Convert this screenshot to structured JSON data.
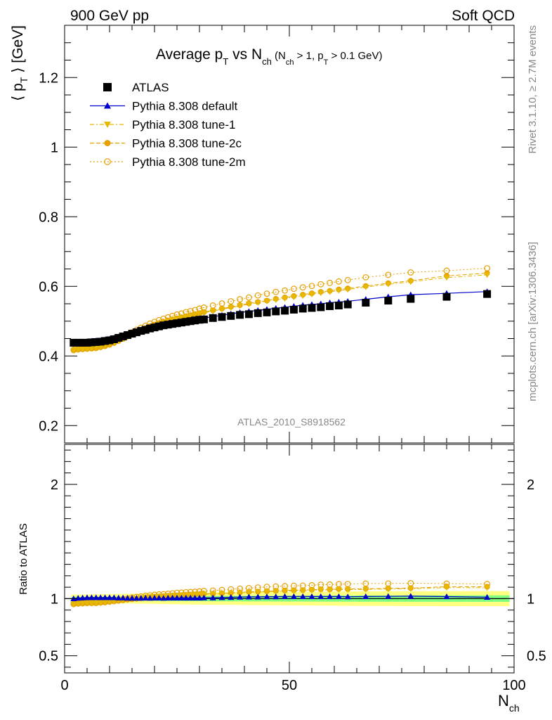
{
  "header": {
    "left": "900 GeV pp",
    "right": "Soft QCD"
  },
  "side_text": {
    "top": "Rivet 3.1.10, ≥ 2.7M events",
    "bottom": "mcplots.cern.ch [arXiv:1306.3436]"
  },
  "analysis_label": "ATLAS_2010_S8918562",
  "chart_data": [
    {
      "panel": "main",
      "type": "scatter",
      "title": "Average pT vs Nch (Nch > 1, pT > 0.1 GeV)",
      "ylabel": "⟨ pT ⟩ [GeV]",
      "xlabel": "",
      "xlim": [
        0,
        100
      ],
      "ylim": [
        0.15,
        1.35
      ],
      "y_ticks": [
        "0.2",
        "0.4",
        "0.6",
        "0.8",
        "1",
        "1.2"
      ],
      "legend_position": "top-left",
      "x": [
        2,
        3,
        4,
        5,
        6,
        7,
        8,
        9,
        10,
        11,
        12,
        13,
        14,
        15,
        16,
        17,
        18,
        19,
        20,
        21,
        22,
        23,
        24,
        25,
        26,
        27,
        28,
        29,
        30,
        31,
        33,
        35,
        37,
        39,
        41,
        43,
        45,
        47,
        49,
        51,
        53,
        55,
        57,
        59,
        61,
        63,
        67,
        72,
        77,
        85,
        94
      ],
      "series": [
        {
          "name": "ATLAS",
          "color": "#000000",
          "marker": "square",
          "line": "none",
          "values": [
            0.438,
            0.438,
            0.438,
            0.438,
            0.439,
            0.44,
            0.441,
            0.443,
            0.445,
            0.448,
            0.452,
            0.456,
            0.46,
            0.464,
            0.468,
            0.472,
            0.475,
            0.479,
            0.482,
            0.485,
            0.488,
            0.49,
            0.492,
            0.494,
            0.496,
            0.498,
            0.5,
            0.502,
            0.504,
            0.505,
            0.509,
            0.512,
            0.515,
            0.518,
            0.52,
            0.523,
            0.525,
            0.528,
            0.53,
            0.533,
            0.536,
            0.538,
            0.54,
            0.543,
            0.545,
            0.548,
            0.553,
            0.559,
            0.564,
            0.57,
            0.578
          ]
        },
        {
          "name": "Pythia 8.308 default",
          "color": "#0000cc",
          "marker": "triangle-up",
          "line": "solid",
          "values": [
            0.438,
            0.44,
            0.441,
            0.442,
            0.443,
            0.444,
            0.445,
            0.447,
            0.449,
            0.452,
            0.455,
            0.459,
            0.462,
            0.466,
            0.47,
            0.474,
            0.478,
            0.481,
            0.485,
            0.488,
            0.49,
            0.493,
            0.495,
            0.497,
            0.499,
            0.501,
            0.503,
            0.505,
            0.507,
            0.509,
            0.513,
            0.517,
            0.521,
            0.525,
            0.528,
            0.531,
            0.534,
            0.537,
            0.54,
            0.543,
            0.546,
            0.548,
            0.55,
            0.553,
            0.555,
            0.557,
            0.563,
            0.57,
            0.576,
            0.58,
            0.585
          ]
        },
        {
          "name": "Pythia 8.308 tune-1",
          "color": "#e6b800",
          "marker": "triangle-down",
          "line": "dash-dot",
          "values": [
            0.416,
            0.418,
            0.419,
            0.42,
            0.421,
            0.422,
            0.424,
            0.428,
            0.432,
            0.437,
            0.443,
            0.449,
            0.455,
            0.461,
            0.467,
            0.473,
            0.478,
            0.483,
            0.488,
            0.492,
            0.496,
            0.5,
            0.503,
            0.506,
            0.509,
            0.512,
            0.515,
            0.518,
            0.521,
            0.524,
            0.529,
            0.534,
            0.539,
            0.544,
            0.549,
            0.553,
            0.557,
            0.561,
            0.565,
            0.569,
            0.573,
            0.577,
            0.581,
            0.584,
            0.588,
            0.591,
            0.598,
            0.606,
            0.613,
            0.625,
            0.633
          ]
        },
        {
          "name": "Pythia 8.308 tune-2c",
          "color": "#e6a000",
          "marker": "circle",
          "line": "dashed",
          "values": [
            0.416,
            0.418,
            0.419,
            0.42,
            0.421,
            0.422,
            0.425,
            0.428,
            0.432,
            0.437,
            0.443,
            0.449,
            0.456,
            0.462,
            0.468,
            0.474,
            0.48,
            0.485,
            0.49,
            0.494,
            0.498,
            0.502,
            0.505,
            0.508,
            0.511,
            0.514,
            0.517,
            0.52,
            0.523,
            0.526,
            0.531,
            0.536,
            0.541,
            0.546,
            0.551,
            0.555,
            0.559,
            0.564,
            0.568,
            0.572,
            0.576,
            0.58,
            0.584,
            0.587,
            0.591,
            0.594,
            0.601,
            0.609,
            0.616,
            0.63,
            0.638
          ]
        },
        {
          "name": "Pythia 8.308 tune-2m",
          "color": "#e69f00",
          "marker": "open-circle",
          "line": "dotted",
          "values": [
            0.418,
            0.42,
            0.421,
            0.422,
            0.424,
            0.426,
            0.429,
            0.433,
            0.437,
            0.442,
            0.448,
            0.454,
            0.461,
            0.468,
            0.475,
            0.481,
            0.487,
            0.493,
            0.498,
            0.503,
            0.507,
            0.511,
            0.515,
            0.519,
            0.522,
            0.526,
            0.529,
            0.532,
            0.536,
            0.539,
            0.545,
            0.551,
            0.557,
            0.563,
            0.568,
            0.574,
            0.579,
            0.584,
            0.588,
            0.593,
            0.597,
            0.601,
            0.606,
            0.61,
            0.614,
            0.618,
            0.626,
            0.633,
            0.64,
            0.645,
            0.652
          ]
        }
      ]
    },
    {
      "panel": "ratio",
      "type": "scatter",
      "title": "",
      "ylabel": "Ratio to ATLAS",
      "xlabel": "Nch",
      "xlim": [
        0,
        100
      ],
      "ylim": [
        0.35,
        2.35
      ],
      "y_ticks": [
        "0.5",
        "1",
        "2"
      ],
      "x_ticks": [
        "0",
        "50",
        "100"
      ],
      "band_inner_color": "#80ff80",
      "band_outer_color": "#ffff80",
      "band_inner_halfwidth": 0.015,
      "band_outer_halfwidth": 0.035,
      "x_edges": [
        1.5,
        2.5,
        3.5,
        4.5,
        5.5,
        6.5,
        7.5,
        8.5,
        9.5,
        10.5,
        11.5,
        12.5,
        13.5,
        14.5,
        15.5,
        16.5,
        17.5,
        18.5,
        19.5,
        20.5,
        21.5,
        22.5,
        23.5,
        24.5,
        25.5,
        26.5,
        27.5,
        28.5,
        29.5,
        30.5,
        32,
        34,
        36,
        38,
        40,
        42,
        44,
        46,
        48,
        50,
        52,
        54,
        56,
        58,
        60,
        62,
        64.5,
        69.5,
        74.5,
        81,
        89.5,
        99
      ]
    }
  ]
}
